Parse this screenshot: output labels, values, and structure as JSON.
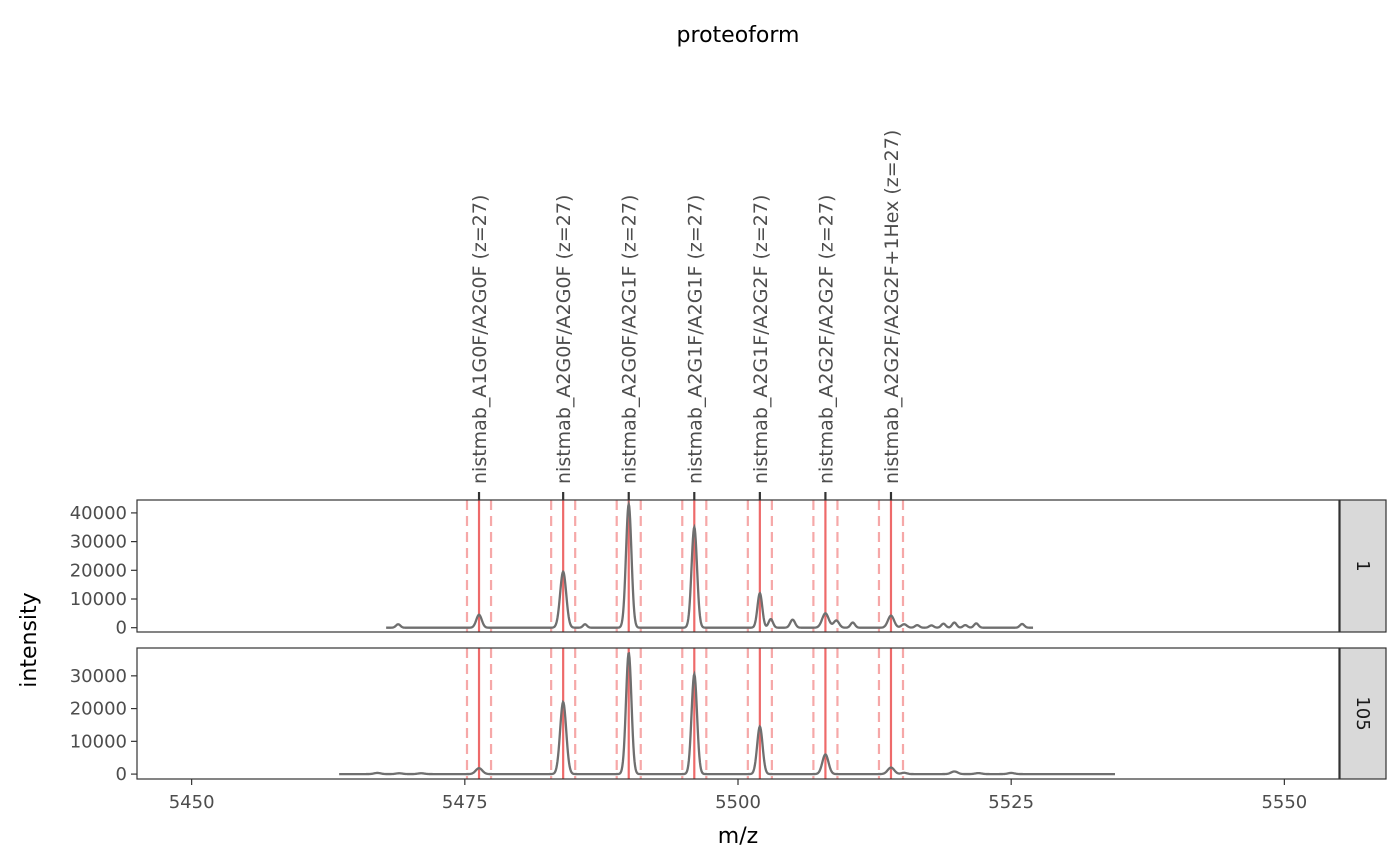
{
  "chart_data": {
    "type": "line",
    "title": "proteoform",
    "xlabel": "m/z",
    "ylabel": "intensity",
    "xlim": [
      5445,
      5555
    ],
    "x_ticks": [
      5450,
      5475,
      5500,
      5525,
      5550
    ],
    "proteoforms": [
      {
        "label": "nistmab_A1G0F/A2G0F (z=27)",
        "mz": 5476.3
      },
      {
        "label": "nistmab_A2G0F/A2G0F (z=27)",
        "mz": 5484.0
      },
      {
        "label": "nistmab_A2G0F/A2G1F (z=27)",
        "mz": 5490.0
      },
      {
        "label": "nistmab_A2G1F/A2G1F (z=27)",
        "mz": 5496.0
      },
      {
        "label": "nistmab_A2G1F/A2G2F (z=27)",
        "mz": 5502.0
      },
      {
        "label": "nistmab_A2G2F/A2G2F (z=27)",
        "mz": 5508.0
      },
      {
        "label": "nistmab_A2G2F/A2G2F+1Hex (z=27)",
        "mz": 5514.0
      }
    ],
    "tolerance": 1.1,
    "panels": [
      {
        "strip": "1",
        "ylim": [
          -1500,
          44500
        ],
        "y_ticks": [
          0,
          10000,
          20000,
          30000,
          40000
        ],
        "x_range": [
          5467.8,
          5527.0
        ],
        "peaks": [
          [
            5468.9,
            1200,
            0.2
          ],
          [
            5476.3,
            4500,
            0.25
          ],
          [
            5484.0,
            19500,
            0.28
          ],
          [
            5486.0,
            1200,
            0.18
          ],
          [
            5490.0,
            43000,
            0.25
          ],
          [
            5496.0,
            35000,
            0.25
          ],
          [
            5502.0,
            12000,
            0.22
          ],
          [
            5503.0,
            3000,
            0.2
          ],
          [
            5505.0,
            2800,
            0.22
          ],
          [
            5508.0,
            5000,
            0.3
          ],
          [
            5509.0,
            2500,
            0.25
          ],
          [
            5510.5,
            1800,
            0.2
          ],
          [
            5514.0,
            4200,
            0.28
          ],
          [
            5515.2,
            1200,
            0.25
          ],
          [
            5516.4,
            900,
            0.2
          ],
          [
            5517.7,
            800,
            0.2
          ],
          [
            5518.8,
            1400,
            0.2
          ],
          [
            5519.8,
            1800,
            0.2
          ],
          [
            5520.8,
            900,
            0.2
          ],
          [
            5521.8,
            1500,
            0.2
          ],
          [
            5526.0,
            1300,
            0.2
          ]
        ]
      },
      {
        "strip": "105",
        "ylim": [
          -1500,
          38500
        ],
        "y_ticks": [
          0,
          10000,
          20000,
          30000
        ],
        "x_range": [
          5463.5,
          5534.5
        ],
        "peaks": [
          [
            5467.0,
            350,
            0.3
          ],
          [
            5469.0,
            250,
            0.3
          ],
          [
            5471.0,
            250,
            0.3
          ],
          [
            5476.3,
            1800,
            0.3
          ],
          [
            5484.0,
            22000,
            0.28
          ],
          [
            5490.0,
            37000,
            0.25
          ],
          [
            5496.0,
            30500,
            0.25
          ],
          [
            5502.0,
            14500,
            0.25
          ],
          [
            5508.0,
            6000,
            0.28
          ],
          [
            5514.0,
            2000,
            0.3
          ],
          [
            5515.2,
            400,
            0.25
          ],
          [
            5519.8,
            800,
            0.3
          ],
          [
            5522.0,
            300,
            0.3
          ],
          [
            5525.0,
            350,
            0.3
          ]
        ]
      }
    ]
  }
}
